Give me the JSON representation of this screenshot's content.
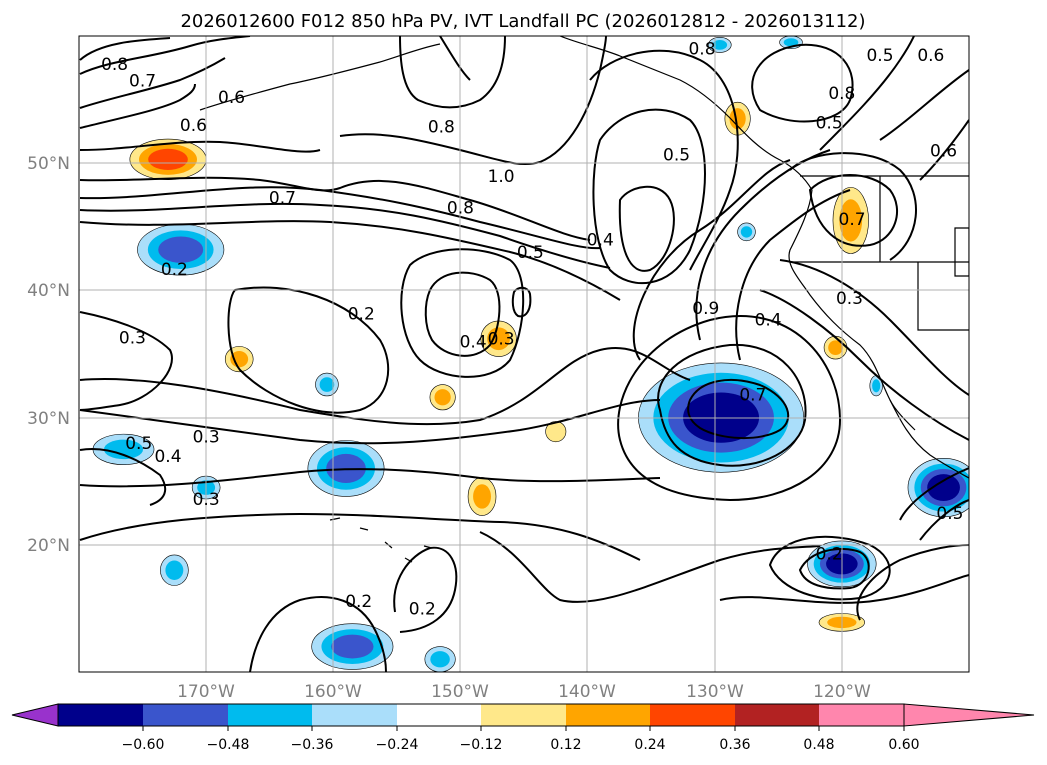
{
  "title": "2026012600 F012 850 hPa PV, IVT Landfall PC (2026012812 - 2026013112)",
  "map": {
    "lon_range": [
      -180,
      -110
    ],
    "lat_range": [
      10,
      60
    ],
    "lon_ticks": [
      {
        "lon": -170,
        "label": "170°W"
      },
      {
        "lon": -160,
        "label": "160°W"
      },
      {
        "lon": -150,
        "label": "150°W"
      },
      {
        "lon": -140,
        "label": "140°W"
      },
      {
        "lon": -130,
        "label": "130°W"
      },
      {
        "lon": -120,
        "label": "120°W"
      }
    ],
    "lat_ticks": [
      {
        "lat": 50,
        "label": "50°N"
      },
      {
        "lat": 40,
        "label": "40°N"
      },
      {
        "lat": 30,
        "label": "30°N"
      },
      {
        "lat": 20,
        "label": "20°N"
      }
    ]
  },
  "colorbar": {
    "ticks": [
      "−0.60",
      "−0.48",
      "−0.36",
      "−0.24",
      "−0.12",
      "0.12",
      "0.24",
      "0.36",
      "0.48",
      "0.60"
    ],
    "colors": [
      "#9932cc",
      "#00008b",
      "#3a55cc",
      "#00bbee",
      "#aadefa",
      "#ffffff",
      "#ffe88a",
      "#ffa500",
      "#ff4500",
      "#b22222",
      "#ff86ad"
    ]
  },
  "contour_labels": [
    {
      "text": "0.8",
      "lon": -177.2,
      "lat": 57.8
    },
    {
      "text": "0.7",
      "lon": -175.0,
      "lat": 56.5
    },
    {
      "text": "0.6",
      "lon": -168.0,
      "lat": 55.2
    },
    {
      "text": "0.6",
      "lon": -171.0,
      "lat": 53.0
    },
    {
      "text": "0.8",
      "lon": -151.5,
      "lat": 52.9
    },
    {
      "text": "1.0",
      "lon": -146.8,
      "lat": 49.0
    },
    {
      "text": "0.7",
      "lon": -164.0,
      "lat": 47.3
    },
    {
      "text": "0.8",
      "lon": -150.0,
      "lat": 46.5
    },
    {
      "text": "0.5",
      "lon": -144.5,
      "lat": 43.0
    },
    {
      "text": "0.4",
      "lon": -139.0,
      "lat": 44.0
    },
    {
      "text": "0.5",
      "lon": -133.0,
      "lat": 50.7
    },
    {
      "text": "0.8",
      "lon": -131.0,
      "lat": 59.0
    },
    {
      "text": "0.5",
      "lon": -117.0,
      "lat": 58.5
    },
    {
      "text": "0.6",
      "lon": -113.0,
      "lat": 58.5
    },
    {
      "text": "0.8",
      "lon": -120.0,
      "lat": 55.5
    },
    {
      "text": "0.5",
      "lon": -121.0,
      "lat": 53.2
    },
    {
      "text": "0.6",
      "lon": -112.0,
      "lat": 51.0
    },
    {
      "text": "0.7",
      "lon": -119.2,
      "lat": 45.6
    },
    {
      "text": "0.2",
      "lon": -172.5,
      "lat": 41.7
    },
    {
      "text": "0.2",
      "lon": -157.8,
      "lat": 38.2
    },
    {
      "text": "0.3",
      "lon": -175.8,
      "lat": 36.3
    },
    {
      "text": "0.4",
      "lon": -149.0,
      "lat": 36.0
    },
    {
      "text": "0.3",
      "lon": -146.8,
      "lat": 36.2
    },
    {
      "text": "0.9",
      "lon": -130.7,
      "lat": 38.6
    },
    {
      "text": "0.4",
      "lon": -125.8,
      "lat": 37.7
    },
    {
      "text": "0.3",
      "lon": -119.4,
      "lat": 39.4
    },
    {
      "text": "0.7",
      "lon": -127.0,
      "lat": 31.8
    },
    {
      "text": "0.5",
      "lon": -175.3,
      "lat": 28.0
    },
    {
      "text": "0.4",
      "lon": -173.0,
      "lat": 27.0
    },
    {
      "text": "0.3",
      "lon": -170.0,
      "lat": 28.5
    },
    {
      "text": "0.3",
      "lon": -170.0,
      "lat": 23.6
    },
    {
      "text": "0.5",
      "lon": -111.5,
      "lat": 22.5
    },
    {
      "text": "0.2",
      "lon": -121.0,
      "lat": 19.3
    },
    {
      "text": "0.2",
      "lon": -158.0,
      "lat": 15.6
    },
    {
      "text": "0.2",
      "lon": -153.0,
      "lat": 15.0
    }
  ],
  "anomalies": [
    {
      "sign": "pos",
      "level": 3,
      "lon": -173.0,
      "lat": 50.3,
      "rx": 3.0,
      "ry": 1.6
    },
    {
      "sign": "neg",
      "level": 3,
      "lon": -172.0,
      "lat": 43.2,
      "rx": 3.4,
      "ry": 2.0
    },
    {
      "sign": "pos",
      "level": 2,
      "lon": -167.4,
      "lat": 34.6,
      "rx": 1.1,
      "ry": 1.0
    },
    {
      "sign": "neg",
      "level": 2,
      "lon": -160.5,
      "lat": 32.6,
      "rx": 0.9,
      "ry": 0.9
    },
    {
      "sign": "pos",
      "level": 2,
      "lon": -151.4,
      "lat": 31.6,
      "rx": 1.0,
      "ry": 1.0
    },
    {
      "sign": "pos",
      "level": 2,
      "lon": -147.0,
      "lat": 36.2,
      "rx": 1.4,
      "ry": 1.4
    },
    {
      "sign": "pos",
      "level": 1,
      "lon": -142.5,
      "lat": 28.9,
      "rx": 0.8,
      "ry": 0.8
    },
    {
      "sign": "pos",
      "level": 2,
      "lon": -148.3,
      "lat": 23.8,
      "rx": 1.1,
      "ry": 1.5
    },
    {
      "sign": "neg",
      "level": 2,
      "lon": -176.5,
      "lat": 27.5,
      "rx": 2.4,
      "ry": 1.2
    },
    {
      "sign": "neg",
      "level": 2,
      "lon": -170.0,
      "lat": 24.5,
      "rx": 1.1,
      "ry": 0.9
    },
    {
      "sign": "neg",
      "level": 3,
      "lon": -159.0,
      "lat": 26.0,
      "rx": 3.0,
      "ry": 2.2
    },
    {
      "sign": "neg",
      "level": 2,
      "lon": -172.5,
      "lat": 18.0,
      "rx": 1.1,
      "ry": 1.2
    },
    {
      "sign": "neg",
      "level": 3,
      "lon": -158.5,
      "lat": 12.0,
      "rx": 3.2,
      "ry": 1.8
    },
    {
      "sign": "neg",
      "level": 2,
      "lon": -151.6,
      "lat": 11.0,
      "rx": 1.2,
      "ry": 1.0
    },
    {
      "sign": "neg",
      "level": 4,
      "lon": -129.5,
      "lat": 30.0,
      "rx": 6.5,
      "ry": 4.3
    },
    {
      "sign": "neg",
      "level": 4,
      "lon": -120.0,
      "lat": 18.5,
      "rx": 2.7,
      "ry": 1.8
    },
    {
      "sign": "pos",
      "level": 2,
      "lon": -120.0,
      "lat": 13.9,
      "rx": 1.8,
      "ry": 0.7
    },
    {
      "sign": "pos",
      "level": 2,
      "lon": -119.3,
      "lat": 45.5,
      "rx": 1.4,
      "ry": 2.6
    },
    {
      "sign": "pos",
      "level": 2,
      "lon": -128.2,
      "lat": 53.5,
      "rx": 1.0,
      "ry": 1.3
    },
    {
      "sign": "pos",
      "level": 2,
      "lon": -120.5,
      "lat": 35.5,
      "rx": 0.9,
      "ry": 0.9
    },
    {
      "sign": "neg",
      "level": 2,
      "lon": -127.5,
      "lat": 44.6,
      "rx": 0.7,
      "ry": 0.7
    },
    {
      "sign": "neg",
      "level": 2,
      "lon": -117.3,
      "lat": 32.5,
      "rx": 0.5,
      "ry": 0.8
    },
    {
      "sign": "neg",
      "level": 4,
      "lon": -112.0,
      "lat": 24.5,
      "rx": 2.8,
      "ry": 2.3
    },
    {
      "sign": "neg",
      "level": 2,
      "lon": -129.6,
      "lat": 59.3,
      "rx": 0.9,
      "ry": 0.6
    },
    {
      "sign": "neg",
      "level": 2,
      "lon": -124.0,
      "lat": 59.5,
      "rx": 0.9,
      "ry": 0.5
    }
  ]
}
